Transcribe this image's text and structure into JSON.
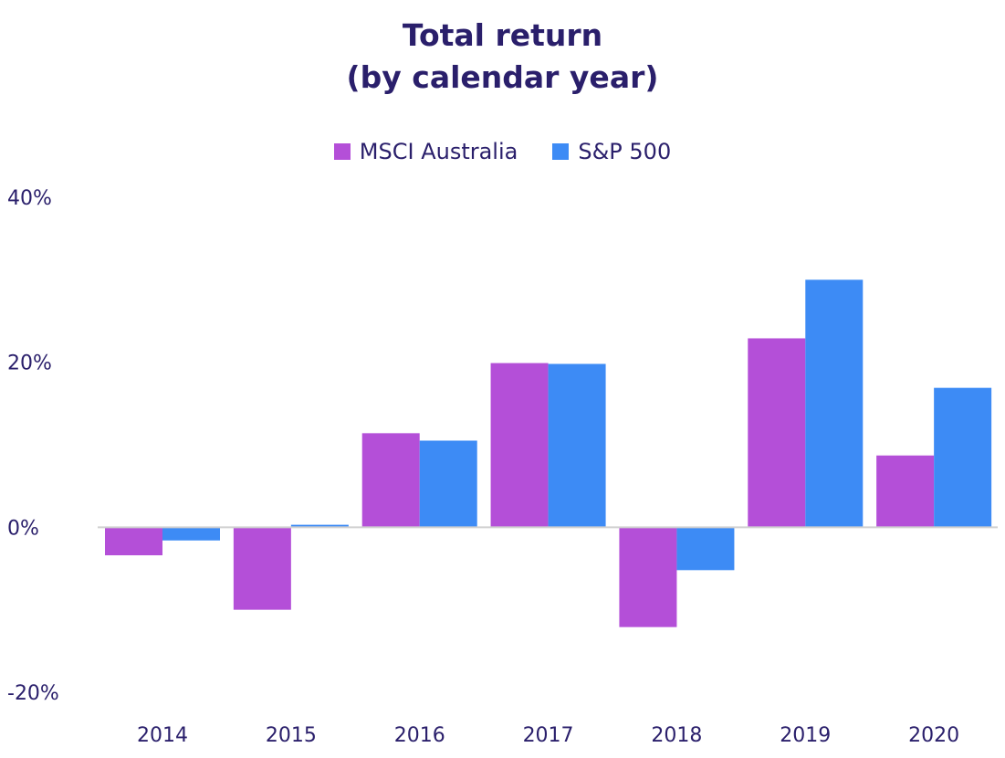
{
  "title": {
    "line1": "Total return",
    "line2": "(by calendar year)"
  },
  "legend": [
    {
      "name": "MSCI Australia",
      "color": "#b44fd8"
    },
    {
      "name": "S&P 500",
      "color": "#3d8bf5"
    }
  ],
  "chart_data": {
    "type": "bar",
    "title": "Total return (by calendar year)",
    "categories": [
      "2014",
      "2015",
      "2016",
      "2017",
      "2018",
      "2019",
      "2020"
    ],
    "series": [
      {
        "name": "MSCI Australia",
        "color": "#b44fd8",
        "values": [
          -3.4,
          -10.0,
          11.4,
          19.9,
          -12.1,
          22.9,
          8.7
        ]
      },
      {
        "name": "S&P 500",
        "color": "#3d8bf5",
        "values": [
          -1.6,
          0.3,
          10.5,
          19.8,
          -5.2,
          30.0,
          16.9
        ]
      }
    ],
    "yticks": [
      "40%",
      "20%",
      "0%",
      "-20%"
    ],
    "ytick_values": [
      40,
      20,
      0,
      -20
    ],
    "ylim": [
      -20,
      40
    ],
    "grid": false,
    "legend_position": "top-center"
  }
}
